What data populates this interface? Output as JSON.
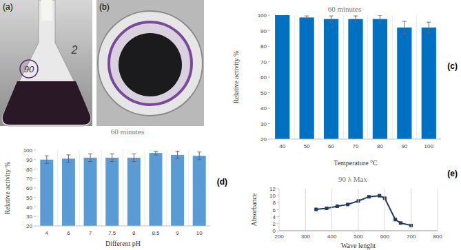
{
  "photos": [
    {
      "label": "(a)",
      "writing": [
        "90",
        "2"
      ]
    },
    {
      "label": "(b)"
    }
  ],
  "chart_data": [
    {
      "type": "bar",
      "annotation": "(c)",
      "title": "60 minutes",
      "x_label": "Temperature °C",
      "y_label": "Relative activity %",
      "categories": [
        "40",
        "50",
        "60",
        "70",
        "80",
        "90",
        "100"
      ],
      "values": [
        100,
        98.5,
        97.5,
        97.5,
        97.5,
        92,
        92
      ],
      "errors": [
        0.5,
        1,
        2,
        2,
        2.5,
        4,
        3.5
      ],
      "color": "#0070c0",
      "ylim": [
        20,
        100
      ],
      "yticks": [
        20,
        30,
        40,
        50,
        60,
        70,
        80,
        90,
        100
      ],
      "grid": false
    },
    {
      "type": "bar",
      "annotation": "(d)",
      "title": "60 minutes",
      "x_label": "Different pH",
      "y_label": "Relative activity %",
      "categories": [
        "4",
        "6",
        "7",
        "7.5",
        "8",
        "8.5",
        "9",
        "10"
      ],
      "values": [
        90,
        91,
        92,
        92,
        92,
        97,
        95,
        94
      ],
      "errors": [
        4,
        4,
        4,
        4,
        4,
        2,
        4,
        4
      ],
      "color": "#5b9bd5",
      "ylim": [
        20,
        100
      ],
      "yticks": [
        20,
        30,
        40,
        50,
        60,
        70,
        80,
        90,
        100
      ],
      "grid": false
    },
    {
      "type": "line",
      "annotation": "(e)",
      "title": "90 λ Max",
      "x_label": "Wave lenght",
      "y_label": "Absorbance",
      "x": [
        340,
        380,
        420,
        460,
        500,
        540,
        580,
        600,
        640,
        660,
        700
      ],
      "values": [
        6.1,
        6.4,
        7.0,
        7.5,
        8.5,
        9.7,
        10.0,
        9.3,
        3.2,
        2.2,
        1.5
      ],
      "color": "#1f3864",
      "marker": "square",
      "xlim": [
        200,
        800
      ],
      "xticks": [
        200,
        300,
        400,
        500,
        600,
        700,
        800
      ],
      "ylim": [
        0,
        12
      ],
      "yticks": [
        0,
        2,
        4,
        6,
        8,
        10,
        12
      ],
      "grid": true
    }
  ]
}
